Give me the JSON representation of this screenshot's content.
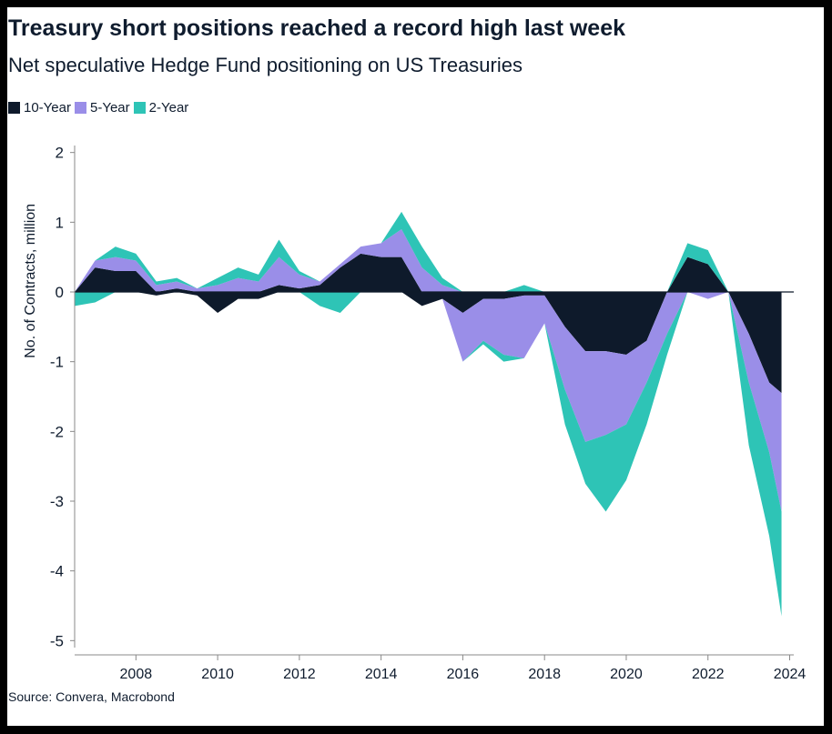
{
  "title": "Treasury short positions reached a record high last week",
  "subtitle": "Net speculative Hedge Fund positioning on US Treasuries",
  "source": "Source: Convera, Macrobond",
  "colors": {
    "ten_year": "#0e1a2b",
    "five_year": "#9a8ee8",
    "two_year": "#2ec4b6",
    "zero_line": "#0e1a2b",
    "text": "#0f1c2e"
  },
  "chart_data": {
    "type": "area",
    "ylabel": "No. of Contracts, million",
    "ylim": [
      -5.1,
      2.1
    ],
    "xlim": [
      2006.5,
      2024.1
    ],
    "yticks": [
      2,
      1,
      0,
      -1,
      -2,
      -3,
      -4,
      -5
    ],
    "ytick_labels": [
      "2",
      "1",
      "0",
      "-1",
      "-2",
      "-3",
      "-4",
      "-5"
    ],
    "xticks": [
      2008,
      2010,
      2012,
      2014,
      2016,
      2018,
      2020,
      2022,
      2024
    ],
    "xtick_labels": [
      "2008",
      "2010",
      "2012",
      "2014",
      "2016",
      "2018",
      "2020",
      "2022",
      "2024"
    ],
    "x": [
      2006.5,
      2007.0,
      2007.5,
      2008.0,
      2008.5,
      2009.0,
      2009.5,
      2010.0,
      2010.5,
      2011.0,
      2011.5,
      2012.0,
      2012.5,
      2013.0,
      2013.5,
      2014.0,
      2014.5,
      2015.0,
      2015.5,
      2016.0,
      2016.5,
      2017.0,
      2017.5,
      2018.0,
      2018.5,
      2019.0,
      2019.5,
      2020.0,
      2020.5,
      2021.0,
      2021.5,
      2022.0,
      2022.5,
      2023.0,
      2023.5,
      2023.8
    ],
    "series": [
      {
        "name": "10-Year",
        "values": [
          0.0,
          0.35,
          0.3,
          0.3,
          -0.05,
          0.05,
          -0.05,
          -0.3,
          -0.1,
          -0.1,
          0.1,
          0.05,
          0.1,
          0.35,
          0.55,
          0.5,
          0.5,
          -0.2,
          -0.1,
          -0.3,
          -0.1,
          -0.1,
          -0.05,
          -0.05,
          -0.5,
          -0.85,
          -0.85,
          -0.9,
          -0.7,
          0.0,
          0.5,
          0.4,
          0.0,
          -0.6,
          -1.3,
          -1.45
        ]
      },
      {
        "name": "5-Year",
        "values": [
          0.0,
          0.1,
          0.2,
          0.15,
          0.1,
          0.1,
          0.05,
          0.1,
          0.2,
          0.15,
          0.4,
          0.2,
          0.05,
          0.05,
          0.1,
          0.2,
          0.4,
          0.35,
          0.1,
          -0.7,
          -0.6,
          -0.8,
          -0.9,
          -0.4,
          -0.9,
          -1.3,
          -1.2,
          -1.0,
          -0.6,
          -0.6,
          0.0,
          -0.1,
          0.0,
          -0.7,
          -1.0,
          -1.7
        ]
      },
      {
        "name": "2-Year",
        "values": [
          -0.2,
          -0.15,
          0.15,
          0.1,
          0.05,
          0.05,
          0.0,
          0.1,
          0.15,
          0.1,
          0.25,
          0.05,
          -0.2,
          -0.3,
          0.0,
          0.0,
          0.25,
          0.3,
          0.1,
          0.0,
          -0.05,
          -0.1,
          0.1,
          0.0,
          -0.5,
          -0.6,
          -1.1,
          -0.8,
          -0.6,
          -0.3,
          0.2,
          0.2,
          0.0,
          -0.9,
          -1.2,
          -1.5
        ]
      }
    ]
  }
}
